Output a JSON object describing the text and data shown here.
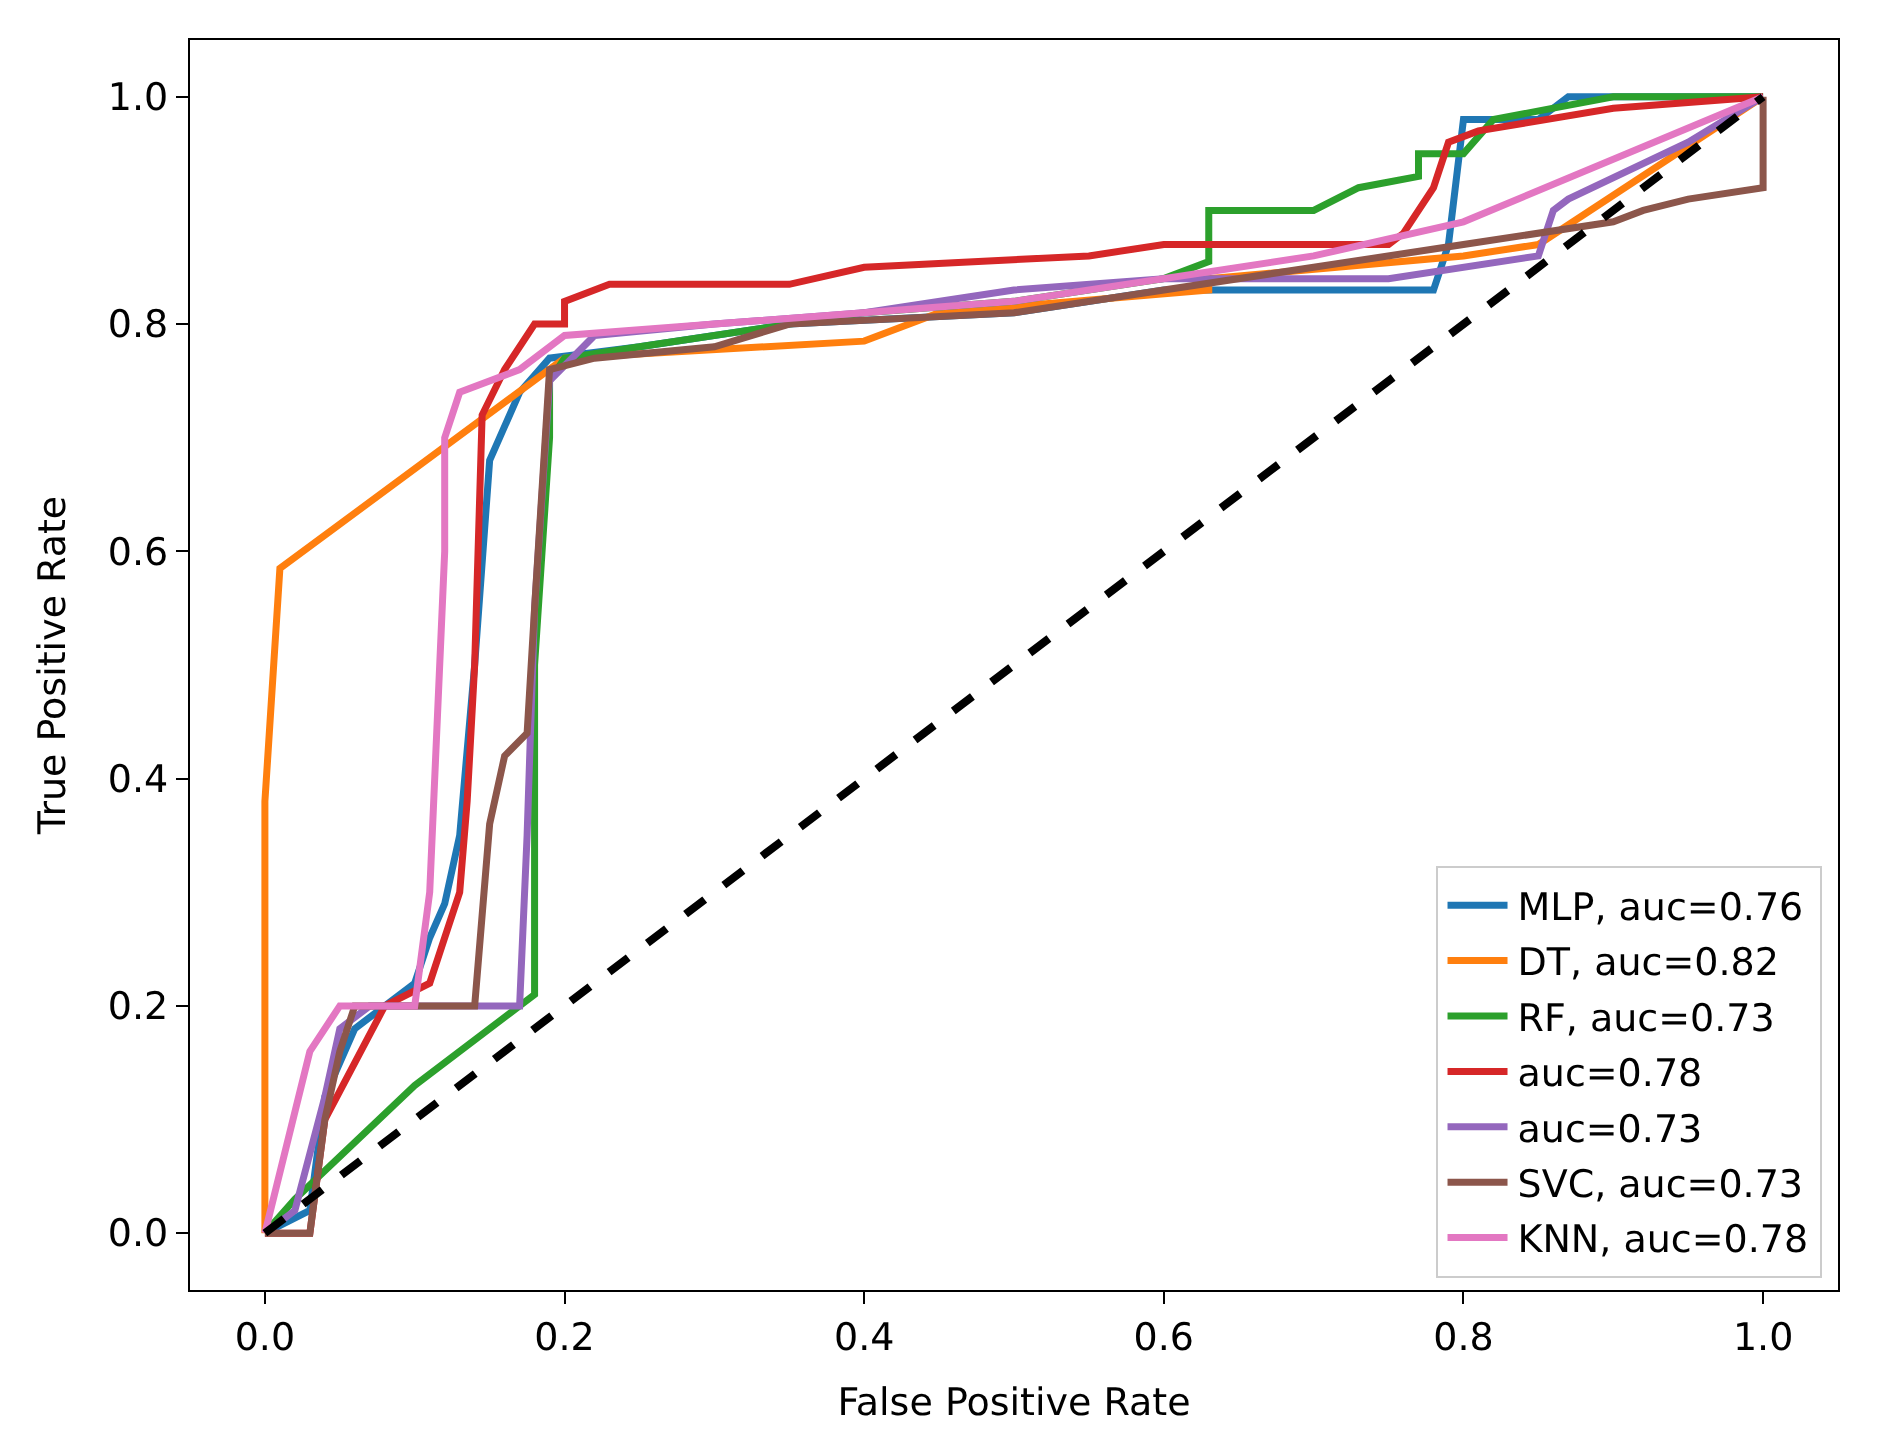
{
  "chart_data": {
    "type": "line",
    "xlabel": "False Positive Rate",
    "ylabel": "True Positive Rate",
    "xlim": [
      -0.05,
      1.05
    ],
    "ylim": [
      -0.05,
      1.05
    ],
    "xticks": [
      {
        "value": 0,
        "label": "0.0"
      },
      {
        "value": 0.2,
        "label": "0.2"
      },
      {
        "value": 0.4,
        "label": "0.4"
      },
      {
        "value": 0.6,
        "label": "0.6"
      },
      {
        "value": 0.8,
        "label": "0.8"
      },
      {
        "value": 1,
        "label": "1.0"
      }
    ],
    "yticks": [
      {
        "value": 0,
        "label": "0.0"
      },
      {
        "value": 0.2,
        "label": "0.2"
      },
      {
        "value": 0.4,
        "label": "0.4"
      },
      {
        "value": 0.6,
        "label": "0.6"
      },
      {
        "value": 0.8,
        "label": "0.8"
      },
      {
        "value": 1,
        "label": "1.0"
      }
    ],
    "legend": "bottom right",
    "marker": "none",
    "series": [
      {
        "name": "MLP, auc=0.76",
        "color": "#1f77b4",
        "x": [
          0,
          0.03,
          0.04,
          0.06,
          0.1,
          0.11,
          0.12,
          0.13,
          0.14,
          0.15,
          0.17,
          0.19,
          0.25,
          0.35,
          0.5,
          0.6,
          0.78,
          0.79,
          0.8,
          0.85,
          0.87,
          1
        ],
        "values": [
          0,
          0.02,
          0.12,
          0.18,
          0.22,
          0.26,
          0.29,
          0.35,
          0.5,
          0.68,
          0.74,
          0.77,
          0.78,
          0.8,
          0.81,
          0.83,
          0.83,
          0.87,
          0.98,
          0.98,
          1,
          1
        ]
      },
      {
        "name": "DT, auc=0.82",
        "color": "#ff7f0e",
        "x": [
          0,
          0,
          0.01,
          0.2,
          0.4,
          0.45,
          0.63,
          0.63,
          0.8,
          0.85,
          1
        ],
        "values": [
          0,
          0.38,
          0.585,
          0.77,
          0.785,
          0.81,
          0.83,
          0.84,
          0.86,
          0.87,
          1
        ]
      },
      {
        "name": "RF, auc=0.73",
        "color": "#2ca02c",
        "x": [
          0,
          0.02,
          0.1,
          0.18,
          0.18,
          0.19,
          0.19,
          0.2,
          0.25,
          0.4,
          0.5,
          0.6,
          0.63,
          0.63,
          0.7,
          0.73,
          0.77,
          0.77,
          0.8,
          0.82,
          0.86,
          0.9,
          1
        ],
        "values": [
          0,
          0.03,
          0.13,
          0.21,
          0.5,
          0.7,
          0.75,
          0.77,
          0.78,
          0.81,
          0.82,
          0.84,
          0.855,
          0.9,
          0.9,
          0.92,
          0.93,
          0.95,
          0.95,
          0.98,
          0.99,
          1,
          1
        ]
      },
      {
        "name": "auc=0.78",
        "color": "#d62728",
        "x": [
          0,
          0.03,
          0.04,
          0.08,
          0.11,
          0.12,
          0.13,
          0.135,
          0.14,
          0.145,
          0.16,
          0.18,
          0.2,
          0.2,
          0.23,
          0.35,
          0.4,
          0.55,
          0.6,
          0.75,
          0.76,
          0.78,
          0.79,
          0.81,
          0.9,
          1
        ],
        "values": [
          0,
          0,
          0.1,
          0.2,
          0.22,
          0.26,
          0.3,
          0.38,
          0.5,
          0.72,
          0.76,
          0.8,
          0.8,
          0.82,
          0.835,
          0.835,
          0.85,
          0.86,
          0.87,
          0.87,
          0.88,
          0.92,
          0.96,
          0.97,
          0.99,
          1
        ]
      },
      {
        "name": "auc=0.73",
        "color": "#9467bd",
        "x": [
          0,
          0.02,
          0.04,
          0.05,
          0.07,
          0.17,
          0.175,
          0.18,
          0.19,
          0.22,
          0.3,
          0.4,
          0.5,
          0.6,
          0.75,
          0.85,
          0.86,
          0.87,
          0.95,
          1
        ],
        "values": [
          0,
          0.02,
          0.12,
          0.18,
          0.2,
          0.2,
          0.35,
          0.55,
          0.75,
          0.79,
          0.8,
          0.81,
          0.83,
          0.84,
          0.84,
          0.86,
          0.9,
          0.91,
          0.96,
          1
        ]
      },
      {
        "name": "SVC, auc=0.73",
        "color": "#8c564b",
        "x": [
          0,
          0.03,
          0.04,
          0.05,
          0.06,
          0.14,
          0.15,
          0.16,
          0.175,
          0.18,
          0.19,
          0.22,
          0.3,
          0.35,
          0.5,
          0.6,
          0.7,
          0.8,
          0.9,
          0.92,
          0.95,
          1,
          1
        ],
        "values": [
          0,
          0,
          0.1,
          0.16,
          0.2,
          0.2,
          0.36,
          0.42,
          0.44,
          0.55,
          0.76,
          0.77,
          0.78,
          0.8,
          0.81,
          0.83,
          0.85,
          0.87,
          0.89,
          0.9,
          0.91,
          0.92,
          1
        ]
      },
      {
        "name": "KNN, auc=0.78",
        "color": "#e377c2",
        "x": [
          0,
          0.03,
          0.05,
          0.1,
          0.11,
          0.12,
          0.12,
          0.13,
          0.17,
          0.2,
          0.3,
          0.5,
          0.7,
          0.8,
          1
        ],
        "values": [
          0,
          0.16,
          0.2,
          0.2,
          0.3,
          0.6,
          0.7,
          0.74,
          0.76,
          0.79,
          0.8,
          0.82,
          0.86,
          0.89,
          1
        ]
      },
      {
        "color": "#000000",
        "line_style": "dashed",
        "x": [
          0,
          1
        ],
        "values": [
          0,
          1
        ]
      }
    ]
  }
}
